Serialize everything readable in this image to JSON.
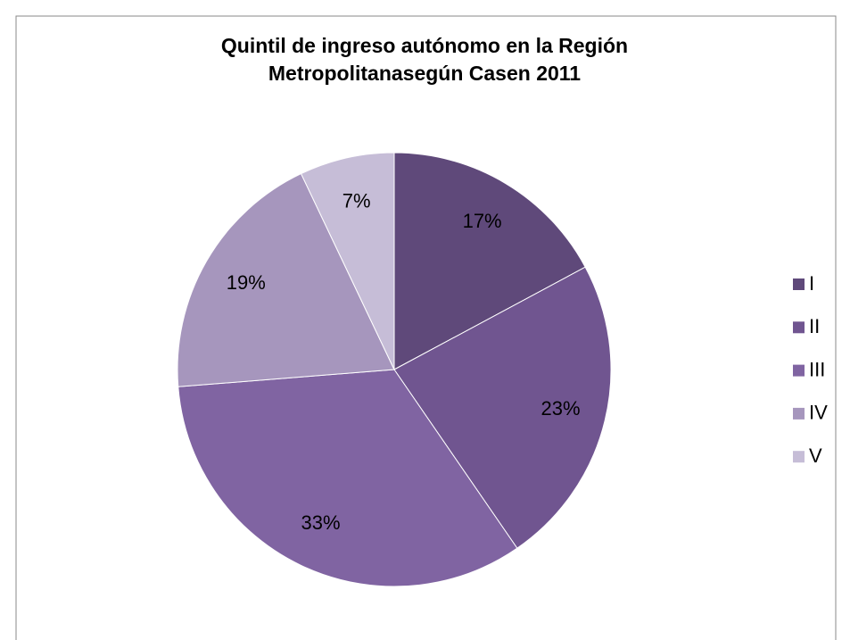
{
  "chart_data": {
    "type": "pie",
    "title": "Quintil de ingreso autónomo en la Región Metropolitanasegún Casen 2011",
    "categories": [
      "I",
      "II",
      "III",
      "IV",
      "V"
    ],
    "values": [
      17,
      23,
      33,
      19,
      7
    ],
    "value_labels": [
      "17%",
      "23%",
      "33%",
      "19%",
      "7%"
    ],
    "colors": [
      "#5f497a",
      "#705590",
      "#8064a2",
      "#a696bd",
      "#c6bdd7"
    ],
    "legend": "right"
  }
}
